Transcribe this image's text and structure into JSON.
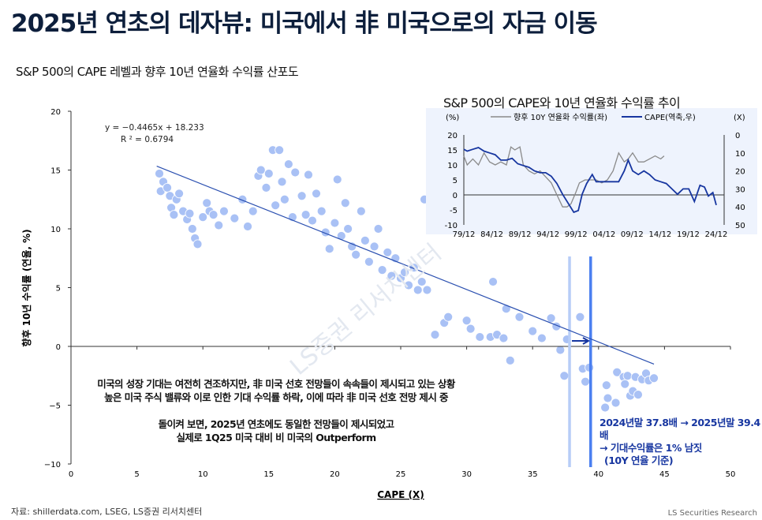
{
  "title": "2025년 연초의 데자뷰: 미국에서 非 미국으로의 자금 이동",
  "subtitle": "S&P 500의 CAPE 레벨과 향후 10년 연율화 수익률 산포도",
  "source": "자료: shillerdata.com, LSEG, LS증권 리서치센터",
  "brand": "LS Securities Research",
  "note_lines": [
    "미국의 성장 기대는 여전히 견조하지만, 非 미국 선호 전망들이 속속들이 제시되고 있는 상황",
    "높은 미국 주식 밸류와 이로 인한 기대 수익률 하락, 이에 따라 非 미국 선호 전망 제시 중",
    "",
    "돌이켜 보면, 2025년 연초에도 동일한 전망들이 제시되었고",
    "실제로 1Q25 미국 대비 비 미국의 Outperform"
  ],
  "annotation_lines": [
    "2024년말 37.8배 → 2025년말 39.4배",
    "→ 기대수익률은 1% 남짓",
    "(10Y 연율 기준)"
  ],
  "colors": {
    "points": "#a9c1f5",
    "trend": "#2a4fb0",
    "v2024": "#b7cdf7",
    "v2025": "#4a7ff0",
    "cape": "#1736a0",
    "ret": "#8a8a8a",
    "inset_bg": "#eef3fd"
  },
  "chart_data": [
    {
      "type": "scatter",
      "title": "S&P 500의 CAPE 레벨과 향후 10년 연율화 수익률 산포도",
      "xlabel": "CAPE (X)",
      "ylabel": "향후 10년 수익률 (연율, %)",
      "xlim": [
        0,
        50
      ],
      "ylim": [
        -10,
        20
      ],
      "xticks": [
        "0",
        "5",
        "10",
        "15",
        "20",
        "25",
        "30",
        "35",
        "40",
        "45",
        "50"
      ],
      "yticks": [
        "20",
        "15",
        "10",
        "5",
        "0",
        "−5",
        "−10"
      ],
      "regression": {
        "equation": "y = −0.4465x + 18.233",
        "r2": "R ² = 0.6794",
        "slope": -0.4465,
        "intercept": 18.233,
        "x_range": [
          6.5,
          44.2
        ]
      },
      "vlines": [
        {
          "label": "2024년말",
          "x": 37.8
        },
        {
          "label": "2025년말",
          "x": 39.4
        }
      ],
      "points": [
        [
          6.7,
          14.7
        ],
        [
          6.8,
          13.2
        ],
        [
          7,
          14
        ],
        [
          7.3,
          13.5
        ],
        [
          7.5,
          12.8
        ],
        [
          7.6,
          11.8
        ],
        [
          7.8,
          11.2
        ],
        [
          8,
          12.5
        ],
        [
          8.2,
          13
        ],
        [
          8.5,
          11.5
        ],
        [
          8.8,
          10.8
        ],
        [
          9,
          11.3
        ],
        [
          9.2,
          10
        ],
        [
          9.4,
          9.2
        ],
        [
          9.6,
          8.7
        ],
        [
          10,
          11
        ],
        [
          10.3,
          12.2
        ],
        [
          10.5,
          11.5
        ],
        [
          10.8,
          11.2
        ],
        [
          11.2,
          10.3
        ],
        [
          11.6,
          11.5
        ],
        [
          12.4,
          10.9
        ],
        [
          13,
          12.5
        ],
        [
          13.4,
          10.2
        ],
        [
          13.8,
          11.5
        ],
        [
          14.2,
          14.5
        ],
        [
          14.4,
          15
        ],
        [
          14.8,
          13.5
        ],
        [
          15,
          14.7
        ],
        [
          15.3,
          16.7
        ],
        [
          15.5,
          12
        ],
        [
          15.8,
          16.7
        ],
        [
          16,
          14
        ],
        [
          16.2,
          12.5
        ],
        [
          16.5,
          15.5
        ],
        [
          16.8,
          11
        ],
        [
          17,
          14.8
        ],
        [
          17.5,
          12.8
        ],
        [
          17.8,
          11.2
        ],
        [
          18,
          14.6
        ],
        [
          18.3,
          10.7
        ],
        [
          18.6,
          13
        ],
        [
          19,
          11.5
        ],
        [
          19.3,
          9.7
        ],
        [
          19.6,
          8.3
        ],
        [
          20,
          10.5
        ],
        [
          20.2,
          14.2
        ],
        [
          20.5,
          9.4
        ],
        [
          20.8,
          12.2
        ],
        [
          21,
          10
        ],
        [
          21.3,
          8.5
        ],
        [
          21.6,
          7.8
        ],
        [
          22,
          11.5
        ],
        [
          22.3,
          9
        ],
        [
          22.6,
          7.2
        ],
        [
          23,
          8.5
        ],
        [
          23.3,
          10
        ],
        [
          23.6,
          6.5
        ],
        [
          24,
          8
        ],
        [
          24.3,
          6
        ],
        [
          24.6,
          7.5
        ],
        [
          25,
          5.8
        ],
        [
          25.3,
          6.3
        ],
        [
          25.6,
          5.2
        ],
        [
          26,
          6.7
        ],
        [
          26.3,
          4.8
        ],
        [
          26.6,
          5.5
        ],
        [
          26.8,
          12.5
        ],
        [
          27,
          4.8
        ],
        [
          27.3,
          11
        ],
        [
          27.6,
          1
        ],
        [
          28.3,
          2
        ],
        [
          28.6,
          2.5
        ],
        [
          30,
          2.2
        ],
        [
          30.3,
          1.5
        ],
        [
          31,
          0.8
        ],
        [
          31.8,
          0.8
        ],
        [
          32,
          5.5
        ],
        [
          32.3,
          1
        ],
        [
          32.8,
          0.7
        ],
        [
          33,
          3.2
        ],
        [
          33.3,
          -1.2
        ],
        [
          34,
          2.5
        ],
        [
          35,
          1.3
        ],
        [
          35.7,
          0.7
        ],
        [
          36.4,
          2.4
        ],
        [
          36.8,
          1.7
        ],
        [
          37.1,
          -0.3
        ],
        [
          37.4,
          -2.5
        ],
        [
          37.6,
          0.6
        ],
        [
          38.6,
          2.5
        ],
        [
          38.8,
          -1.9
        ],
        [
          39,
          -3
        ],
        [
          39.3,
          -1.8
        ],
        [
          40.5,
          -5.2
        ],
        [
          40.6,
          -3.3
        ],
        [
          40.7,
          -4.4
        ],
        [
          41.3,
          -4.8
        ],
        [
          41.4,
          -2.2
        ],
        [
          41.9,
          -2.6
        ],
        [
          42,
          -3.2
        ],
        [
          42.2,
          -2.5
        ],
        [
          42.4,
          -4.2
        ],
        [
          42.6,
          -3.8
        ],
        [
          42.8,
          -2.6
        ],
        [
          43,
          -4.1
        ],
        [
          43.3,
          -2.8
        ],
        [
          43.6,
          -2.3
        ],
        [
          43.8,
          -2.9
        ],
        [
          44.2,
          -2.7
        ]
      ]
    },
    {
      "type": "line",
      "title": "S&P 500의 CAPE와 10년 연율화 수익률 추이",
      "left_unit": "(%)",
      "right_unit": "(X)",
      "ylim_left": [
        -10,
        20
      ],
      "ylim_right_inverted": [
        0,
        50
      ],
      "xticks": [
        "79/12",
        "84/12",
        "89/12",
        "94/12",
        "99/12",
        "04/12",
        "09/12",
        "14/12",
        "19/12",
        "24/12"
      ],
      "yticks_left": [
        "20",
        "15",
        "10",
        "5",
        "0",
        "-5",
        "-10"
      ],
      "yticks_right": [
        "0",
        "10",
        "20",
        "30",
        "40",
        "50"
      ],
      "series": [
        {
          "name": "향후 10Y 연율화 수익률(좌)",
          "axis": "left",
          "x": [
            1979.9,
            1980.5,
            1981.5,
            1982.5,
            1983.5,
            1984.5,
            1985.5,
            1986.5,
            1987.5,
            1988.3,
            1989,
            1989.9,
            1990.5,
            1991.5,
            1992.5,
            1993.5,
            1994.5,
            1995.5,
            1996.5,
            1997.5,
            1998.3,
            1999,
            1999.9,
            2000.5,
            2001.5,
            2002.5,
            2003.5,
            2004.5,
            2005.5,
            2006.5,
            2007.5,
            2008.5,
            2009.2,
            2010,
            2011,
            2012,
            2013,
            2014,
            2015,
            2015.6
          ],
          "values": [
            13,
            10,
            12,
            10,
            14,
            11,
            10,
            11,
            10,
            16,
            15,
            16,
            10,
            8,
            7,
            8,
            6,
            4,
            0,
            -4,
            -4,
            -3,
            1,
            4,
            5,
            5,
            5,
            4,
            5,
            8,
            14,
            11,
            12,
            14,
            11,
            11,
            12,
            13,
            12,
            13
          ]
        },
        {
          "name": "CAPE(역축,우)",
          "axis": "right",
          "x": [
            1979.9,
            1980.5,
            1981.5,
            1982.5,
            1983.5,
            1984.5,
            1985.5,
            1986.5,
            1987.5,
            1988.5,
            1989.5,
            1990.5,
            1991.5,
            1992.5,
            1993.5,
            1994.5,
            1995.5,
            1996.5,
            1997.5,
            1998.5,
            1999.5,
            2000.3,
            2001,
            2001.8,
            2002.8,
            2003.5,
            2004.5,
            2005.5,
            2006.5,
            2007.5,
            2008.5,
            2009.2,
            2010,
            2011,
            2012,
            2013,
            2014,
            2015,
            2016,
            2017,
            2018,
            2019,
            2020,
            2021,
            2022,
            2022.8,
            2023.5,
            2024.3,
            2024.9
          ],
          "values": [
            8,
            9,
            8,
            7,
            9,
            10,
            11,
            14,
            14,
            13,
            16,
            17,
            18,
            20,
            21,
            21,
            23,
            27,
            33,
            38,
            43,
            42,
            33,
            27,
            22,
            26,
            26,
            26,
            26,
            26,
            20,
            14,
            20,
            22,
            20,
            22,
            25,
            26,
            27,
            30,
            33,
            30,
            30,
            37,
            28,
            29,
            34,
            32,
            39
          ]
        }
      ]
    }
  ]
}
